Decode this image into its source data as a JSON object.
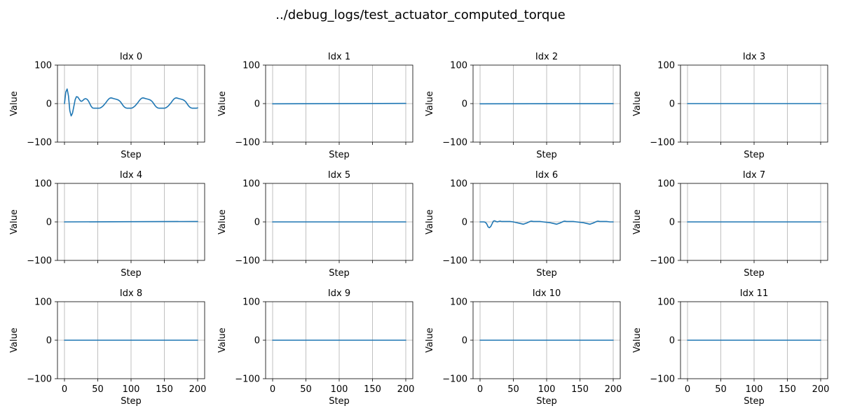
{
  "figure": {
    "title": "../debug_logs/test_actuator_computed_torque"
  },
  "chart_data": [
    {
      "type": "line",
      "title": "Idx 0",
      "xlabel": "Step",
      "ylabel": "Value",
      "xlim": [
        0,
        200
      ],
      "ylim": [
        -100,
        100
      ],
      "xticks": [
        0,
        50,
        100,
        150,
        200
      ],
      "yticks": [
        -100,
        0,
        100
      ],
      "grid": "x",
      "series": [
        {
          "x": [
            0,
            2,
            4,
            6,
            8,
            10,
            12,
            14,
            16,
            18,
            20,
            22,
            24,
            26,
            28,
            30,
            32,
            34,
            36,
            38,
            40,
            42,
            44,
            46,
            48,
            50,
            52,
            54,
            56,
            58,
            60,
            62,
            64,
            66,
            68,
            70,
            72,
            74,
            76,
            78,
            80,
            82,
            84,
            86,
            88,
            90,
            92,
            94,
            96,
            98,
            100,
            102,
            104,
            106,
            108,
            110,
            112,
            114,
            116,
            118,
            120,
            122,
            124,
            126,
            128,
            130,
            132,
            134,
            136,
            138,
            140,
            142,
            144,
            146,
            148,
            150,
            152,
            154,
            156,
            158,
            160,
            162,
            164,
            166,
            168,
            170,
            172,
            174,
            176,
            178,
            180,
            182,
            184,
            186,
            188,
            190,
            192,
            194,
            196,
            198,
            200
          ],
          "values": [
            0,
            30,
            38,
            20,
            -18,
            -32,
            -25,
            -8,
            10,
            18,
            17,
            12,
            7,
            6,
            9,
            12,
            13,
            11,
            7,
            0,
            -7,
            -11,
            -12,
            -12,
            -12,
            -12,
            -12,
            -11,
            -9,
            -6,
            -2,
            2,
            7,
            11,
            14,
            15,
            14,
            13,
            12,
            11,
            10,
            8,
            5,
            0,
            -5,
            -9,
            -11,
            -12,
            -12,
            -12,
            -12,
            -11,
            -9,
            -6,
            -2,
            2,
            7,
            11,
            14,
            15,
            14,
            13,
            12,
            11,
            10,
            8,
            5,
            0,
            -5,
            -9,
            -11,
            -12,
            -12,
            -12,
            -12,
            -12,
            -11,
            -9,
            -6,
            -2,
            2,
            7,
            11,
            14,
            15,
            14,
            13,
            12,
            11,
            10,
            8,
            5,
            0,
            -5,
            -9,
            -11,
            -12,
            -12,
            -12,
            -12,
            -11
          ]
        }
      ]
    },
    {
      "type": "line",
      "title": "Idx 1",
      "xlabel": "Step",
      "ylabel": "Value",
      "xlim": [
        0,
        200
      ],
      "ylim": [
        -100,
        100
      ],
      "xticks": [
        0,
        50,
        100,
        150,
        200
      ],
      "yticks": [
        -100,
        0,
        100
      ],
      "grid": "x",
      "series": [
        {
          "x": [
            0,
            200
          ],
          "values": [
            -0.5,
            0.5
          ]
        }
      ]
    },
    {
      "type": "line",
      "title": "Idx 2",
      "xlabel": "Step",
      "ylabel": "Value",
      "xlim": [
        0,
        200
      ],
      "ylim": [
        -100,
        100
      ],
      "xticks": [
        0,
        50,
        100,
        150,
        200
      ],
      "yticks": [
        -100,
        0,
        100
      ],
      "grid": "x",
      "series": [
        {
          "x": [
            0,
            200
          ],
          "values": [
            -0.5,
            -0.2
          ]
        }
      ]
    },
    {
      "type": "line",
      "title": "Idx 3",
      "xlabel": "Step",
      "ylabel": "Value",
      "xlim": [
        0,
        200
      ],
      "ylim": [
        -100,
        100
      ],
      "xticks": [
        0,
        50,
        100,
        150,
        200
      ],
      "yticks": [
        -100,
        0,
        100
      ],
      "grid": "x",
      "series": [
        {
          "x": [
            0,
            200
          ],
          "values": [
            0,
            0
          ]
        }
      ]
    },
    {
      "type": "line",
      "title": "Idx 4",
      "xlabel": "Step",
      "ylabel": "Value",
      "xlim": [
        0,
        200
      ],
      "ylim": [
        -100,
        100
      ],
      "xticks": [
        0,
        50,
        100,
        150,
        200
      ],
      "yticks": [
        -100,
        0,
        100
      ],
      "grid": "x",
      "series": [
        {
          "x": [
            0,
            200
          ],
          "values": [
            0,
            1
          ]
        }
      ]
    },
    {
      "type": "line",
      "title": "Idx 5",
      "xlabel": "Step",
      "ylabel": "Value",
      "xlim": [
        0,
        200
      ],
      "ylim": [
        -100,
        100
      ],
      "xticks": [
        0,
        50,
        100,
        150,
        200
      ],
      "yticks": [
        -100,
        0,
        100
      ],
      "grid": "x",
      "series": [
        {
          "x": [
            0,
            200
          ],
          "values": [
            0,
            0
          ]
        }
      ]
    },
    {
      "type": "line",
      "title": "Idx 6",
      "xlabel": "Step",
      "ylabel": "Value",
      "xlim": [
        0,
        200
      ],
      "ylim": [
        -100,
        100
      ],
      "xticks": [
        0,
        50,
        100,
        150,
        200
      ],
      "yticks": [
        -100,
        0,
        100
      ],
      "grid": "x",
      "series": [
        {
          "x": [
            0,
            4,
            6,
            8,
            10,
            12,
            14,
            16,
            18,
            20,
            22,
            24,
            26,
            28,
            30,
            32,
            35,
            40,
            45,
            50,
            55,
            60,
            65,
            70,
            75,
            77,
            80,
            85,
            90,
            95,
            100,
            105,
            110,
            115,
            120,
            125,
            127,
            130,
            135,
            140,
            145,
            150,
            155,
            160,
            165,
            170,
            175,
            177,
            180,
            185,
            190,
            195,
            200
          ],
          "values": [
            0,
            0,
            0,
            -1,
            -5,
            -13,
            -15,
            -12,
            -5,
            2,
            3,
            1,
            0,
            1,
            2,
            1,
            1,
            1,
            1,
            0,
            -2,
            -4,
            -6,
            -3,
            1,
            2,
            1,
            1,
            1,
            0,
            -1,
            -2,
            -4,
            -6,
            -3,
            1,
            2,
            1,
            1,
            1,
            0,
            -1,
            -2,
            -4,
            -6,
            -3,
            1,
            2,
            1,
            1,
            1,
            0,
            0
          ]
        }
      ]
    },
    {
      "type": "line",
      "title": "Idx 7",
      "xlabel": "Step",
      "ylabel": "Value",
      "xlim": [
        0,
        200
      ],
      "ylim": [
        -100,
        100
      ],
      "xticks": [
        0,
        50,
        100,
        150,
        200
      ],
      "yticks": [
        -100,
        0,
        100
      ],
      "grid": "x",
      "series": [
        {
          "x": [
            0,
            200
          ],
          "values": [
            0,
            0
          ]
        }
      ]
    },
    {
      "type": "line",
      "title": "Idx 8",
      "xlabel": "Step",
      "ylabel": "Value",
      "xlim": [
        0,
        200
      ],
      "ylim": [
        -100,
        100
      ],
      "xticks": [
        0,
        50,
        100,
        150,
        200
      ],
      "yticks": [
        -100,
        0,
        100
      ],
      "grid": "x",
      "series": [
        {
          "x": [
            0,
            200
          ],
          "values": [
            0,
            0
          ]
        }
      ]
    },
    {
      "type": "line",
      "title": "Idx 9",
      "xlabel": "Step",
      "ylabel": "Value",
      "xlim": [
        0,
        200
      ],
      "ylim": [
        -100,
        100
      ],
      "xticks": [
        0,
        50,
        100,
        150,
        200
      ],
      "yticks": [
        -100,
        0,
        100
      ],
      "grid": "x",
      "series": [
        {
          "x": [
            0,
            200
          ],
          "values": [
            0,
            0
          ]
        }
      ]
    },
    {
      "type": "line",
      "title": "Idx 10",
      "xlabel": "Step",
      "ylabel": "Value",
      "xlim": [
        0,
        200
      ],
      "ylim": [
        -100,
        100
      ],
      "xticks": [
        0,
        50,
        100,
        150,
        200
      ],
      "yticks": [
        -100,
        0,
        100
      ],
      "grid": "x",
      "series": [
        {
          "x": [
            0,
            200
          ],
          "values": [
            0,
            0
          ]
        }
      ]
    },
    {
      "type": "line",
      "title": "Idx 11",
      "xlabel": "Step",
      "ylabel": "Value",
      "xlim": [
        0,
        200
      ],
      "ylim": [
        -100,
        100
      ],
      "xticks": [
        0,
        50,
        100,
        150,
        200
      ],
      "yticks": [
        -100,
        0,
        100
      ],
      "grid": "x",
      "series": [
        {
          "x": [
            0,
            200
          ],
          "values": [
            0,
            0
          ]
        }
      ]
    }
  ],
  "colors": {
    "series": "#1f77b4",
    "grid": "#b0b0b0",
    "frame": "#000000"
  }
}
